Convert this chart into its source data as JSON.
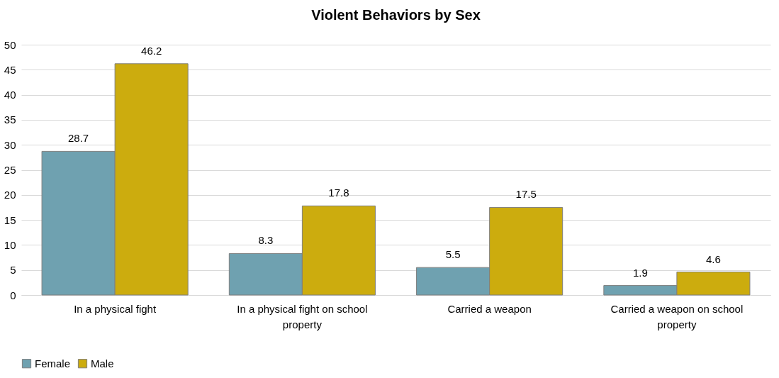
{
  "chart_data": {
    "type": "bar",
    "title": "Violent Behaviors by Sex",
    "categories": [
      "In a physical fight",
      "In a physical fight on school property",
      "Carried a weapon",
      "Carried a weapon on school property"
    ],
    "series": [
      {
        "name": "Female",
        "color": "#6fa1b0",
        "values": [
          28.7,
          8.3,
          5.5,
          1.9
        ]
      },
      {
        "name": "Male",
        "color": "#ccac0e",
        "values": [
          46.2,
          17.8,
          17.5,
          4.6
        ]
      }
    ],
    "ylim": [
      0,
      50
    ],
    "yticks": [
      0,
      5,
      10,
      15,
      20,
      25,
      30,
      35,
      40,
      45,
      50
    ],
    "grid": "y",
    "legend": "bottom",
    "data_labels": true
  }
}
